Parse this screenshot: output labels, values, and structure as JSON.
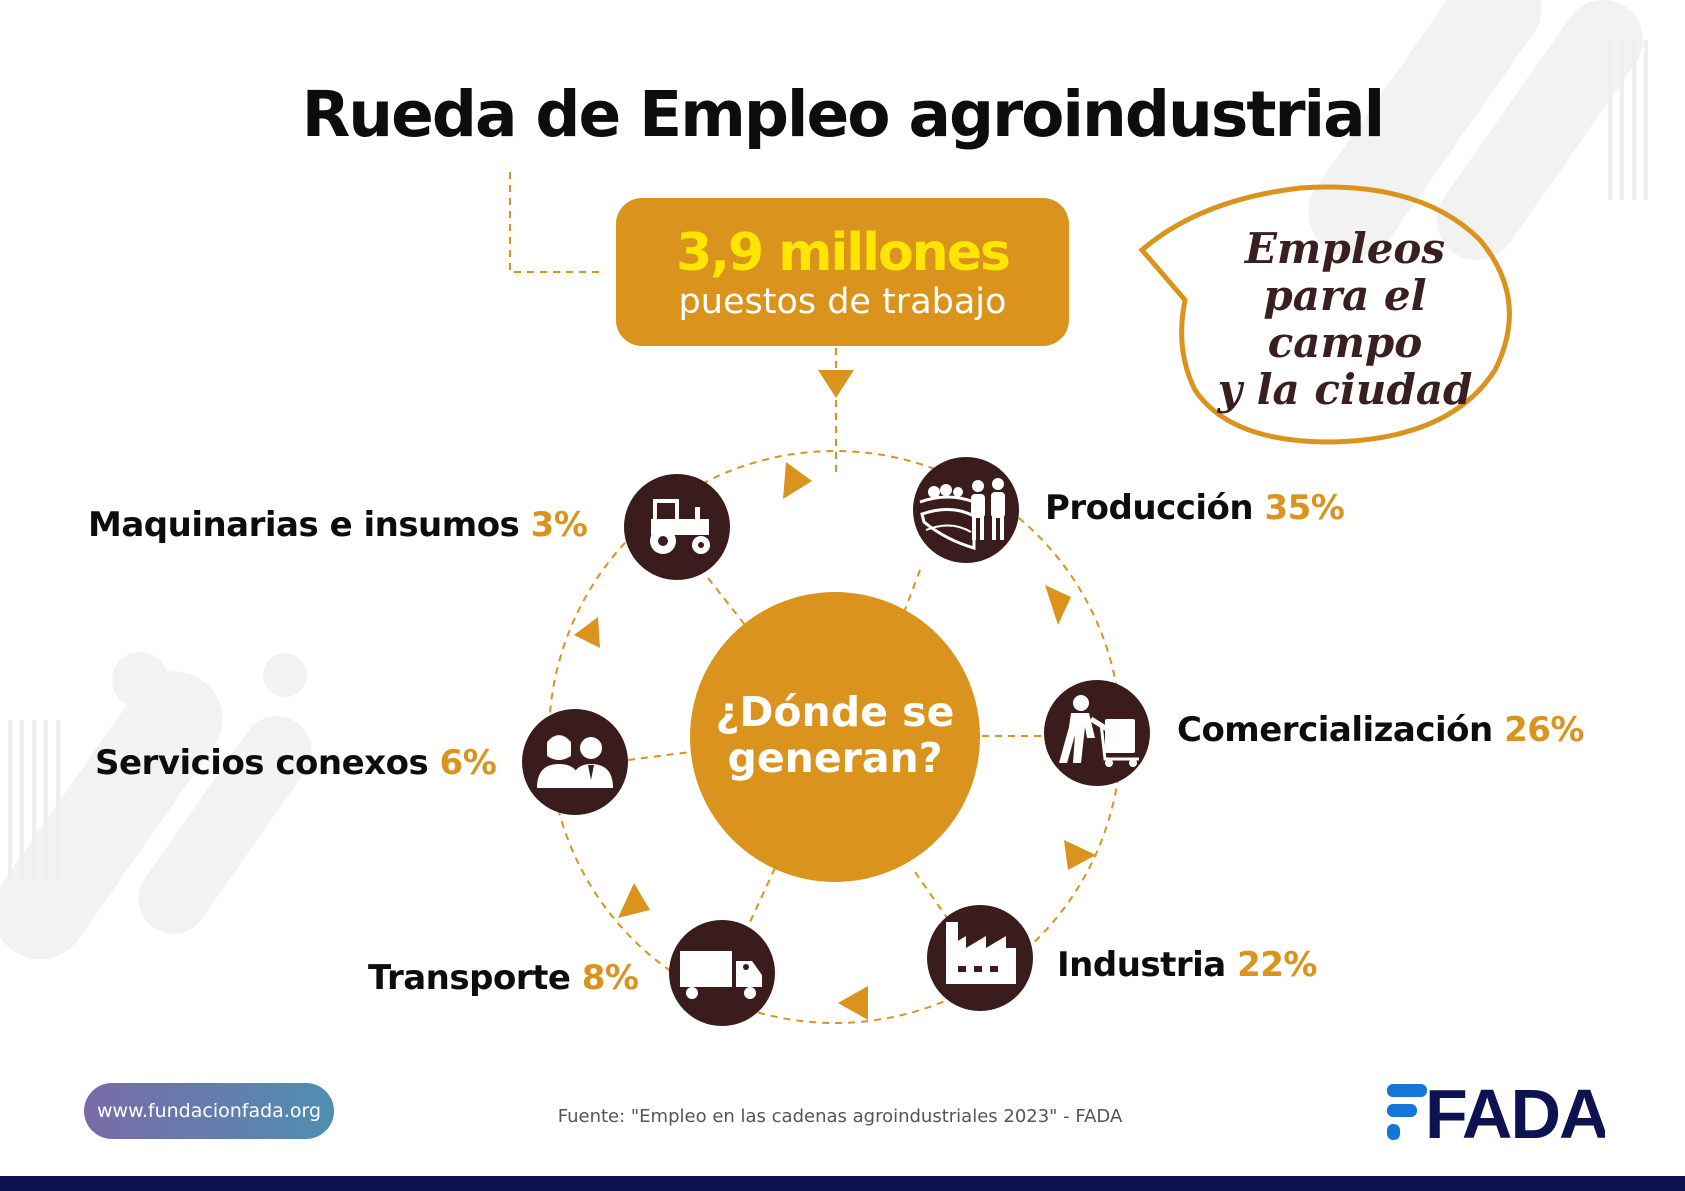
{
  "title": "Rueda de Empleo agroindustrial",
  "total": {
    "number": "3,9 millones",
    "label": "puestos de trabajo"
  },
  "bubble": {
    "line1": "Empleos",
    "line2": "para el campo",
    "line3": "y la ciudad"
  },
  "center_question": "¿Dónde se generan?",
  "sectors": [
    {
      "name": "Producción",
      "pct": "35%",
      "icon": "farm-workers-icon"
    },
    {
      "name": "Comercialización",
      "pct": "26%",
      "icon": "hand-truck-worker-icon"
    },
    {
      "name": "Industria",
      "pct": "22%",
      "icon": "factory-icon"
    },
    {
      "name": "Transporte",
      "pct": "8%",
      "icon": "truck-icon"
    },
    {
      "name": "Servicios conexos",
      "pct": "6%",
      "icon": "people-icon"
    },
    {
      "name": "Maquinarias e insumos",
      "pct": "3%",
      "icon": "tractor-icon"
    }
  ],
  "source": "Fuente: \"Empleo en las cadenas agroindustriales 2023\" - FADA",
  "website": "www.fundacionfada.org",
  "logo_text": "FADA",
  "colors": {
    "accent": "#DA941E",
    "dark": "#3A1C1D",
    "yellow": "#FFE600",
    "brand_blue": "#0F1250"
  }
}
